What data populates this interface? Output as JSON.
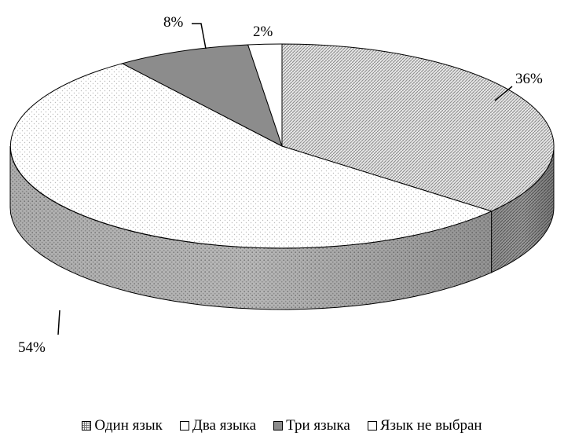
{
  "chart_data": {
    "type": "pie",
    "title": "",
    "categories": [
      "Один язык",
      "Два языка",
      "Три языка",
      "Язык не выбран"
    ],
    "values": [
      36,
      54,
      8,
      2
    ],
    "data_labels": [
      "36%",
      "54%",
      "8%",
      "2%"
    ],
    "legend_position": "bottom",
    "colors": [
      "#a9a9a9",
      "#ffffff",
      "#8c8c8c",
      "#ffffff"
    ]
  },
  "legend": {
    "items": [
      {
        "label": "Один язык"
      },
      {
        "label": "Два языка"
      },
      {
        "label": "Три языка"
      },
      {
        "label": "Язык не выбран"
      }
    ]
  }
}
